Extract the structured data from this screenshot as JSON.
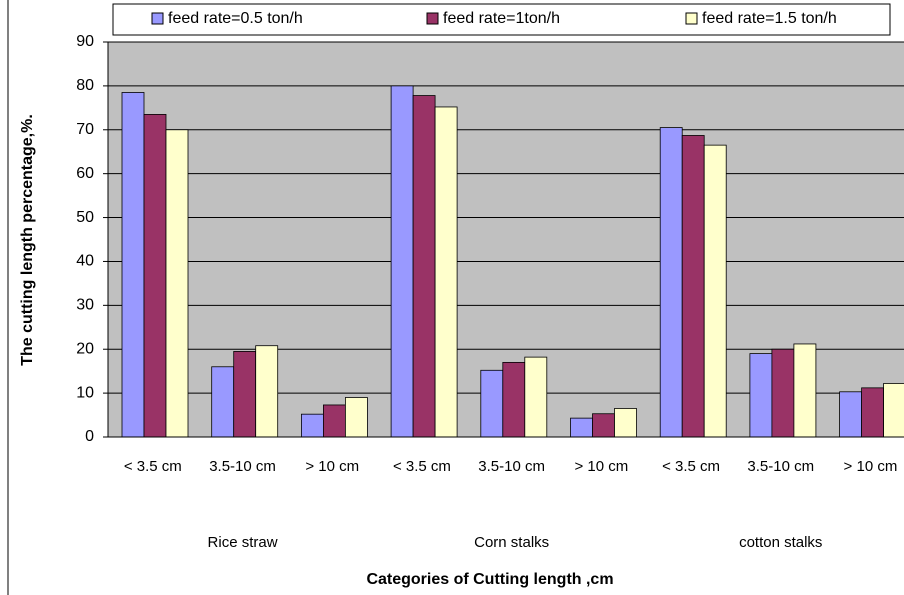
{
  "chart_data": {
    "type": "bar",
    "ylabel": "The cutting length percentage,%.",
    "xlabel": "Categories of Cutting length ,cm",
    "categories": [
      "< 3.5 cm",
      "3.5-10 cm",
      "> 10 cm",
      "< 3.5 cm",
      "3.5-10 cm",
      "> 10 cm",
      "< 3.5 cm",
      "3.5-10 cm",
      "> 10 cm"
    ],
    "groups": [
      "Rice straw",
      "Corn stalks",
      "cotton stalks"
    ],
    "series": [
      {
        "name": "feed rate=0.5 ton/h",
        "color": "#9999ff",
        "values": [
          78.5,
          16,
          5.2,
          80,
          15.2,
          4.3,
          70.5,
          19,
          10.3
        ]
      },
      {
        "name": "feed rate=1ton/h",
        "color": "#993366",
        "values": [
          73.5,
          19.5,
          7.3,
          77.8,
          17,
          5.3,
          68.7,
          20,
          11.2
        ]
      },
      {
        "name": "feed rate=1.5 ton/h",
        "color": "#ffffcc",
        "values": [
          70,
          20.8,
          9,
          75.2,
          18.2,
          6.5,
          66.5,
          21.2,
          12.2
        ]
      }
    ],
    "ylim": [
      0,
      90
    ],
    "yticks": [
      0,
      10,
      20,
      30,
      40,
      50,
      60,
      70,
      80,
      90
    ],
    "grid": true,
    "legend": "top",
    "plot_background": "#c0c0c0"
  }
}
